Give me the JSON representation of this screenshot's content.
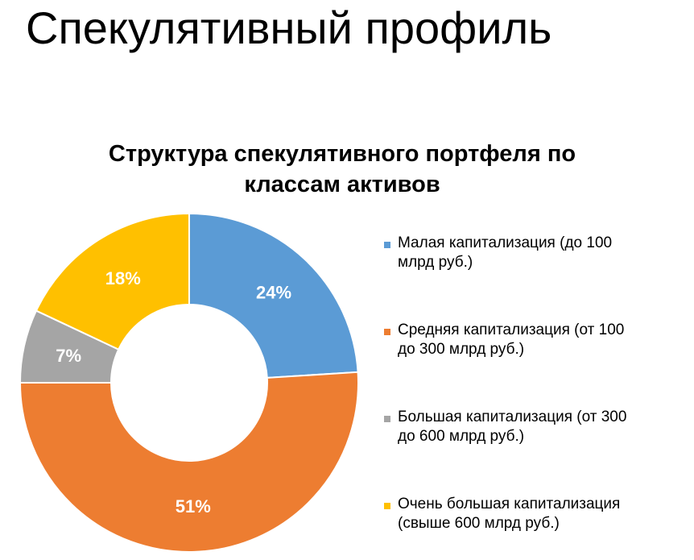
{
  "slide": {
    "title": "Спекулятивный профиль"
  },
  "chart_data": {
    "type": "pie",
    "variant": "donut",
    "title_lines": [
      "Структура спекулятивного портфеля по",
      "классам активов"
    ],
    "legend_placement": "right",
    "categories": [
      "Малая капитализация (до 100 млрд руб.)",
      "Средняя капитализация (от 100 до 300 млрд руб.)",
      "Большая капитализация (от 300 до 600 млрд руб.)",
      "Очень большая капитализация (свыше 600 млрд руб.)"
    ],
    "legend_lines": [
      [
        "Малая капитализация (до 100",
        "млрд руб.)"
      ],
      [
        "Средняя капитализация (от 100",
        "до 300 млрд руб.)"
      ],
      [
        "Большая капитализация (от 300",
        "до 600 млрд руб.)"
      ],
      [
        "Очень большая капитализация",
        "(свыше 600 млрд руб.)"
      ]
    ],
    "values": [
      24,
      51,
      7,
      18
    ],
    "data_labels": [
      "24%",
      "51%",
      "7%",
      "18%"
    ],
    "colors": [
      "#5B9BD5",
      "#ED7D31",
      "#A5A5A5",
      "#FFC000"
    ]
  }
}
